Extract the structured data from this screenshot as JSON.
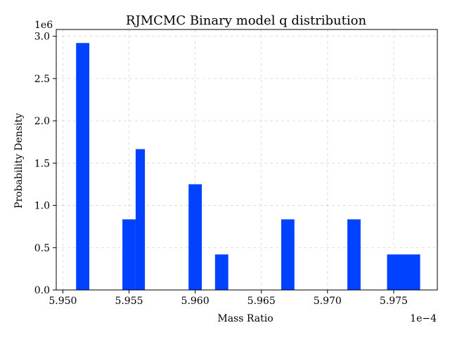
{
  "chart_data": {
    "type": "bar",
    "title": "RJMCMC Binary model q distribution",
    "xlabel": "Mass Ratio",
    "ylabel": "Probability Density",
    "x_offset_label": "1e−4",
    "y_offset_label": "1e6",
    "xlim": [
      5.9495,
      5.9783
    ],
    "ylim": [
      0,
      3.08
    ],
    "x_ticks": [
      5.95,
      5.955,
      5.96,
      5.965,
      5.97,
      5.975
    ],
    "x_tick_labels": [
      "5.950",
      "5.955",
      "5.960",
      "5.965",
      "5.970",
      "5.975"
    ],
    "y_ticks": [
      0.0,
      0.5,
      1.0,
      1.5,
      2.0,
      2.5,
      3.0
    ],
    "y_tick_labels": [
      "0.0",
      "0.5",
      "1.0",
      "1.5",
      "2.0",
      "2.5",
      "3.0"
    ],
    "grid": true,
    "bar_color": "#0042ff",
    "bins": [
      {
        "x0": 5.951,
        "x1": 5.952,
        "value": 2.92
      },
      {
        "x0": 5.9545,
        "x1": 5.9555,
        "value": 0.835
      },
      {
        "x0": 5.9555,
        "x1": 5.9562,
        "value": 1.665
      },
      {
        "x0": 5.9595,
        "x1": 5.9605,
        "value": 1.25
      },
      {
        "x0": 5.9615,
        "x1": 5.9625,
        "value": 0.42
      },
      {
        "x0": 5.9665,
        "x1": 5.9675,
        "value": 0.835
      },
      {
        "x0": 5.9715,
        "x1": 5.9725,
        "value": 0.835
      },
      {
        "x0": 5.9745,
        "x1": 5.977,
        "value": 0.42
      }
    ]
  }
}
